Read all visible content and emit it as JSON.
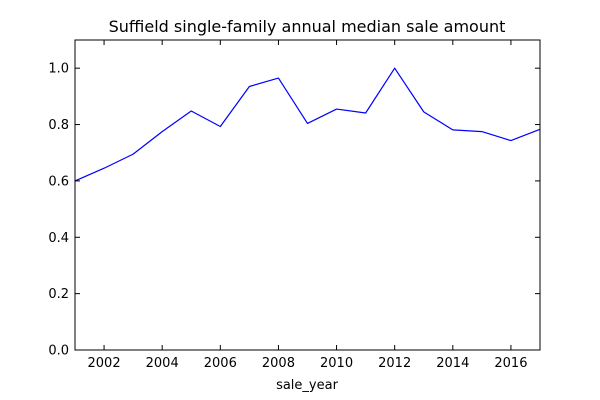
{
  "chart_data": {
    "type": "line",
    "title": "Suffield single-family annual median sale amount",
    "xlabel": "sale_year",
    "ylabel": "",
    "xlim": [
      2001,
      2017
    ],
    "ylim": [
      0.0,
      1.1
    ],
    "x_ticks": [
      2002,
      2004,
      2006,
      2008,
      2010,
      2012,
      2014,
      2016
    ],
    "y_ticks": [
      0.0,
      0.2,
      0.4,
      0.6,
      0.8,
      1.0
    ],
    "x_tick_labels": [
      "2002",
      "2004",
      "2006",
      "2008",
      "2010",
      "2012",
      "2014",
      "2016"
    ],
    "y_tick_labels": [
      "0.0",
      "0.2",
      "0.4",
      "0.6",
      "0.8",
      "1.0"
    ],
    "grid": false,
    "series": [
      {
        "color": "#0000ff",
        "x": [
          2001,
          2002,
          2003,
          2004,
          2005,
          2006,
          2007,
          2008,
          2009,
          2010,
          2011,
          2012,
          2013,
          2014,
          2015,
          2016,
          2017
        ],
        "y": [
          0.6,
          0.645,
          0.695,
          0.775,
          0.848,
          0.793,
          0.935,
          0.965,
          0.804,
          0.855,
          0.841,
          1.0,
          0.845,
          0.781,
          0.775,
          0.743,
          0.783
        ]
      }
    ]
  }
}
